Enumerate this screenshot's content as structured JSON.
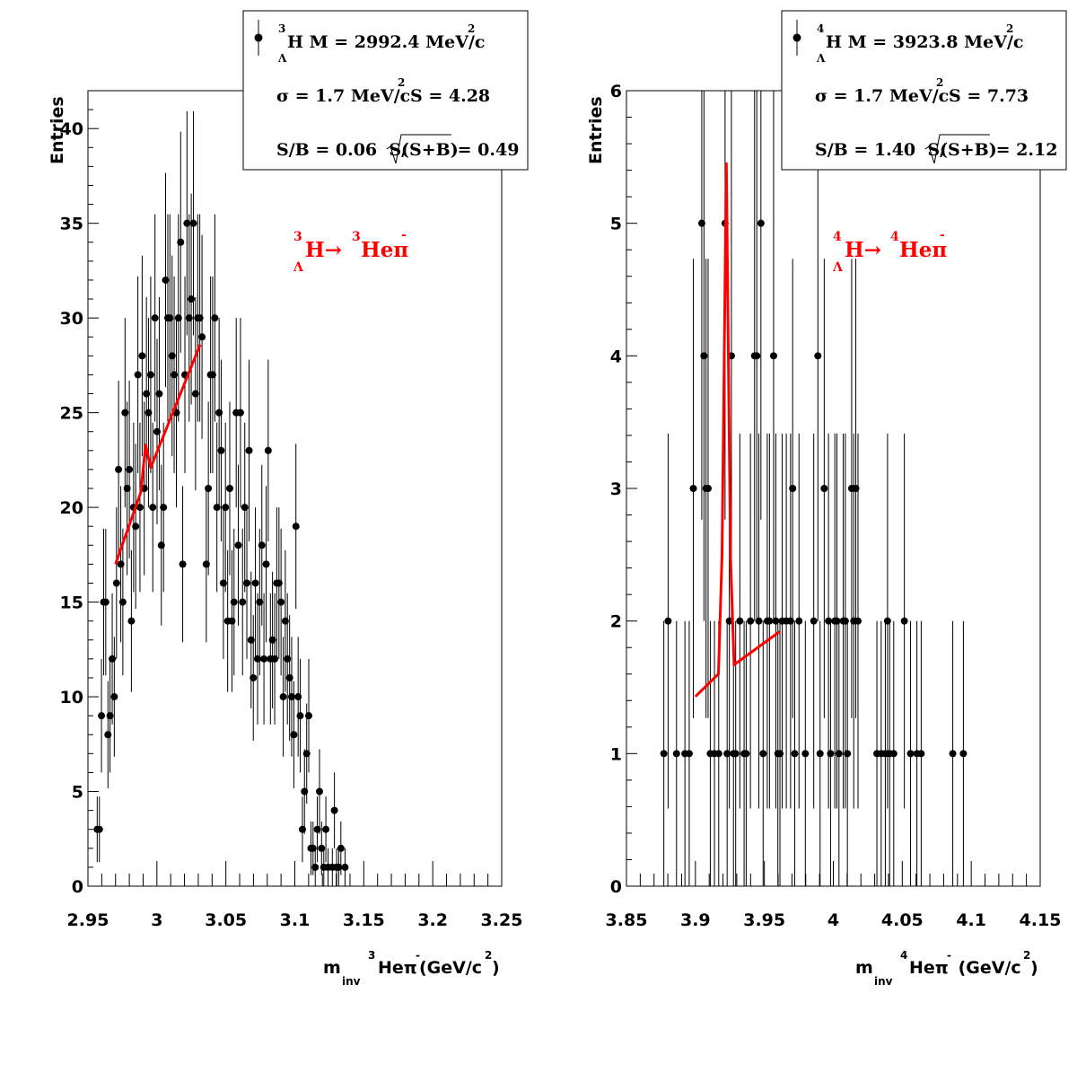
{
  "chart_data": [
    {
      "type": "scatter",
      "ylabel": "Entries",
      "xlabel": {
        "m": "m",
        "inv": "inv",
        "sup3": "3",
        "He": "Heπ",
        "minus": "-",
        "unit": "(GeV/c",
        "unit_sup": "2",
        "unit_close": ")"
      },
      "xlim": [
        2.95,
        3.25
      ],
      "ylim": [
        0,
        42
      ],
      "x_ticks": [
        "2.95",
        "3",
        "3.05",
        "3.1",
        "3.15",
        "3.2",
        "3.25"
      ],
      "y_ticks": [
        "0",
        "5",
        "10",
        "15",
        "20",
        "25",
        "30",
        "35",
        "40"
      ],
      "legend": {
        "line1": {
          "sup": "3",
          "sub": "Λ",
          "text": "H M = 2992.4 MeV/c",
          "unit_sup": "2"
        },
        "line2": {
          "text": "σ = 1.7 MeV/c",
          "unit_sup": "2",
          "tail": "S = 4.28"
        },
        "line3": {
          "left": "S/B = 0.06  S/",
          "radicand": "(S+B)",
          "right": " = 0.49"
        }
      },
      "annotation": {
        "sup1": "3",
        "sub1": "Λ",
        "main": "H→ ",
        "sup2": "3",
        "he": "Heπ",
        "minus": "-"
      },
      "points": [
        [
          2.9567,
          3
        ],
        [
          2.9583,
          3
        ],
        [
          2.9598,
          9
        ],
        [
          2.9614,
          15
        ],
        [
          2.9629,
          15
        ],
        [
          2.9645,
          8
        ],
        [
          2.966,
          9
        ],
        [
          2.9676,
          12
        ],
        [
          2.9691,
          10
        ],
        [
          2.9707,
          16
        ],
        [
          2.9722,
          22
        ],
        [
          2.9738,
          17
        ],
        [
          2.9753,
          15
        ],
        [
          2.9769,
          25
        ],
        [
          2.9784,
          21
        ],
        [
          2.98,
          22
        ],
        [
          2.9815,
          14
        ],
        [
          2.9831,
          20
        ],
        [
          2.9846,
          19
        ],
        [
          2.9862,
          27
        ],
        [
          2.9877,
          20
        ],
        [
          2.9893,
          28
        ],
        [
          2.9908,
          21
        ],
        [
          2.9924,
          26
        ],
        [
          2.9939,
          25
        ],
        [
          2.9955,
          27
        ],
        [
          2.997,
          20
        ],
        [
          2.9986,
          30
        ],
        [
          3.0001,
          24
        ],
        [
          3.0017,
          26
        ],
        [
          3.0032,
          18
        ],
        [
          3.0048,
          20
        ],
        [
          3.0063,
          32
        ],
        [
          3.0079,
          30
        ],
        [
          3.0094,
          30
        ],
        [
          3.011,
          28
        ],
        [
          3.0125,
          27
        ],
        [
          3.0141,
          25
        ],
        [
          3.0156,
          30
        ],
        [
          3.0172,
          34
        ],
        [
          3.0187,
          17
        ],
        [
          3.0203,
          27
        ],
        [
          3.0218,
          35
        ],
        [
          3.0234,
          30
        ],
        [
          3.0249,
          31
        ],
        [
          3.0265,
          35
        ],
        [
          3.028,
          26
        ],
        [
          3.0296,
          30
        ],
        [
          3.0311,
          30
        ],
        [
          3.0327,
          29
        ],
        [
          3.0358,
          17
        ],
        [
          3.0373,
          21
        ],
        [
          3.0389,
          27
        ],
        [
          3.0404,
          27
        ],
        [
          3.042,
          30
        ],
        [
          3.0435,
          20
        ],
        [
          3.0451,
          25
        ],
        [
          3.0466,
          23
        ],
        [
          3.0482,
          16
        ],
        [
          3.0497,
          20
        ],
        [
          3.0513,
          14
        ],
        [
          3.0528,
          21
        ],
        [
          3.0544,
          14
        ],
        [
          3.0559,
          15
        ],
        [
          3.0575,
          25
        ],
        [
          3.059,
          18
        ],
        [
          3.0606,
          25
        ],
        [
          3.0621,
          15
        ],
        [
          3.0637,
          20
        ],
        [
          3.0652,
          16
        ],
        [
          3.0668,
          23
        ],
        [
          3.0683,
          13
        ],
        [
          3.0699,
          11
        ],
        [
          3.0714,
          16
        ],
        [
          3.073,
          12
        ],
        [
          3.0745,
          15
        ],
        [
          3.0761,
          18
        ],
        [
          3.0776,
          12
        ],
        [
          3.0792,
          17
        ],
        [
          3.0807,
          23
        ],
        [
          3.0823,
          12
        ],
        [
          3.0838,
          13
        ],
        [
          3.0854,
          12
        ],
        [
          3.0869,
          16
        ],
        [
          3.0885,
          16
        ],
        [
          3.09,
          15
        ],
        [
          3.0916,
          10
        ],
        [
          3.0931,
          14
        ],
        [
          3.0946,
          12
        ],
        [
          3.0962,
          11
        ],
        [
          3.0977,
          10
        ],
        [
          3.0993,
          8
        ],
        [
          3.1008,
          19
        ],
        [
          3.1024,
          10
        ],
        [
          3.1039,
          9
        ],
        [
          3.1055,
          3
        ],
        [
          3.107,
          5
        ],
        [
          3.1086,
          7
        ],
        [
          3.1101,
          9
        ],
        [
          3.1117,
          2
        ],
        [
          3.1132,
          2
        ],
        [
          3.1148,
          1
        ],
        [
          3.1163,
          3
        ],
        [
          3.1179,
          5
        ],
        [
          3.1194,
          2
        ],
        [
          3.121,
          1
        ],
        [
          3.1225,
          3
        ],
        [
          3.1241,
          1
        ],
        [
          3.1272,
          1
        ],
        [
          3.1287,
          4
        ],
        [
          3.1303,
          1
        ],
        [
          3.1318,
          1
        ],
        [
          3.1334,
          2
        ],
        [
          3.1364,
          1
        ]
      ],
      "fit": [
        [
          2.97,
          17
        ],
        [
          2.9883,
          20.8
        ],
        [
          2.9918,
          23.3
        ],
        [
          2.9955,
          22.1
        ],
        [
          3.0314,
          28.6
        ]
      ]
    },
    {
      "type": "scatter",
      "ylabel": "Entries",
      "xlabel": {
        "m": "m",
        "inv": "inv",
        "sup3": "4",
        "He": "Heπ",
        "minus": "-",
        "unit": " (GeV/c",
        "unit_sup": "2",
        "unit_close": ")"
      },
      "xlim": [
        3.85,
        4.15
      ],
      "ylim": [
        0,
        6
      ],
      "x_ticks": [
        "3.85",
        "3.9",
        "3.95",
        "4",
        "4.05",
        "4.1",
        "4.15"
      ],
      "y_ticks": [
        "0",
        "1",
        "2",
        "3",
        "4",
        "5",
        "6"
      ],
      "legend": {
        "line1": {
          "sup": "4",
          "sub": "Λ",
          "text": "H M = 3923.8 MeV/c",
          "unit_sup": "2"
        },
        "line2": {
          "text": "σ = 1.7 MeV/c",
          "unit_sup": "2",
          "tail": "S = 7.73"
        },
        "line3": {
          "left": "S/B = 1.40  S/",
          "radicand": "(S+B)",
          "right": " = 2.12"
        }
      },
      "annotation": {
        "sup1": "4",
        "sub1": "Λ",
        "main": "H→ ",
        "sup2": "4",
        "he": "Heπ",
        "minus": "-"
      },
      "points": [
        [
          3.8771,
          1
        ],
        [
          3.8802,
          2
        ],
        [
          3.8863,
          1
        ],
        [
          3.8924,
          1
        ],
        [
          3.8955,
          1
        ],
        [
          3.8985,
          3
        ],
        [
          3.9046,
          5
        ],
        [
          3.9062,
          4
        ],
        [
          3.9077,
          3
        ],
        [
          3.9092,
          3
        ],
        [
          3.9108,
          1
        ],
        [
          3.9138,
          1
        ],
        [
          3.9169,
          1
        ],
        [
          3.9215,
          5
        ],
        [
          3.923,
          1
        ],
        [
          3.9246,
          2
        ],
        [
          3.9261,
          4
        ],
        [
          3.9276,
          1
        ],
        [
          3.9292,
          1
        ],
        [
          3.9322,
          2
        ],
        [
          3.9353,
          1
        ],
        [
          3.9368,
          1
        ],
        [
          3.9399,
          2
        ],
        [
          3.9429,
          4
        ],
        [
          3.9445,
          4
        ],
        [
          3.946,
          2
        ],
        [
          3.9475,
          5
        ],
        [
          3.9491,
          1
        ],
        [
          3.9521,
          2
        ],
        [
          3.9537,
          2
        ],
        [
          3.9567,
          4
        ],
        [
          3.9583,
          2
        ],
        [
          3.9598,
          1
        ],
        [
          3.9613,
          1
        ],
        [
          3.9629,
          2
        ],
        [
          3.9659,
          2
        ],
        [
          3.969,
          2
        ],
        [
          3.9705,
          3
        ],
        [
          3.972,
          1
        ],
        [
          3.9751,
          2
        ],
        [
          3.9797,
          1
        ],
        [
          3.9858,
          2
        ],
        [
          3.9888,
          4
        ],
        [
          3.9904,
          1
        ],
        [
          3.9934,
          3
        ],
        [
          3.9965,
          2
        ],
        [
          3.998,
          1
        ],
        [
          4.0011,
          2
        ],
        [
          4.0026,
          2
        ],
        [
          4.0041,
          1
        ],
        [
          4.0072,
          2
        ],
        [
          4.0087,
          2
        ],
        [
          4.0102,
          1
        ],
        [
          4.0133,
          3
        ],
        [
          4.0148,
          2
        ],
        [
          4.0163,
          3
        ],
        [
          4.0179,
          2
        ],
        [
          4.0316,
          1
        ],
        [
          4.0347,
          1
        ],
        [
          4.0377,
          1
        ],
        [
          4.0393,
          2
        ],
        [
          4.0408,
          1
        ],
        [
          4.0438,
          1
        ],
        [
          4.0515,
          2
        ],
        [
          4.056,
          1
        ],
        [
          4.0606,
          1
        ],
        [
          4.0637,
          1
        ],
        [
          4.0866,
          1
        ],
        [
          4.0943,
          1
        ]
      ],
      "fit": [
        [
          3.9,
          1.43
        ],
        [
          3.9167,
          1.6
        ],
        [
          3.9193,
          2.5
        ],
        [
          3.9224,
          5.45
        ],
        [
          3.9254,
          2.5
        ],
        [
          3.928,
          1.67
        ],
        [
          3.9611,
          1.92
        ]
      ]
    }
  ]
}
